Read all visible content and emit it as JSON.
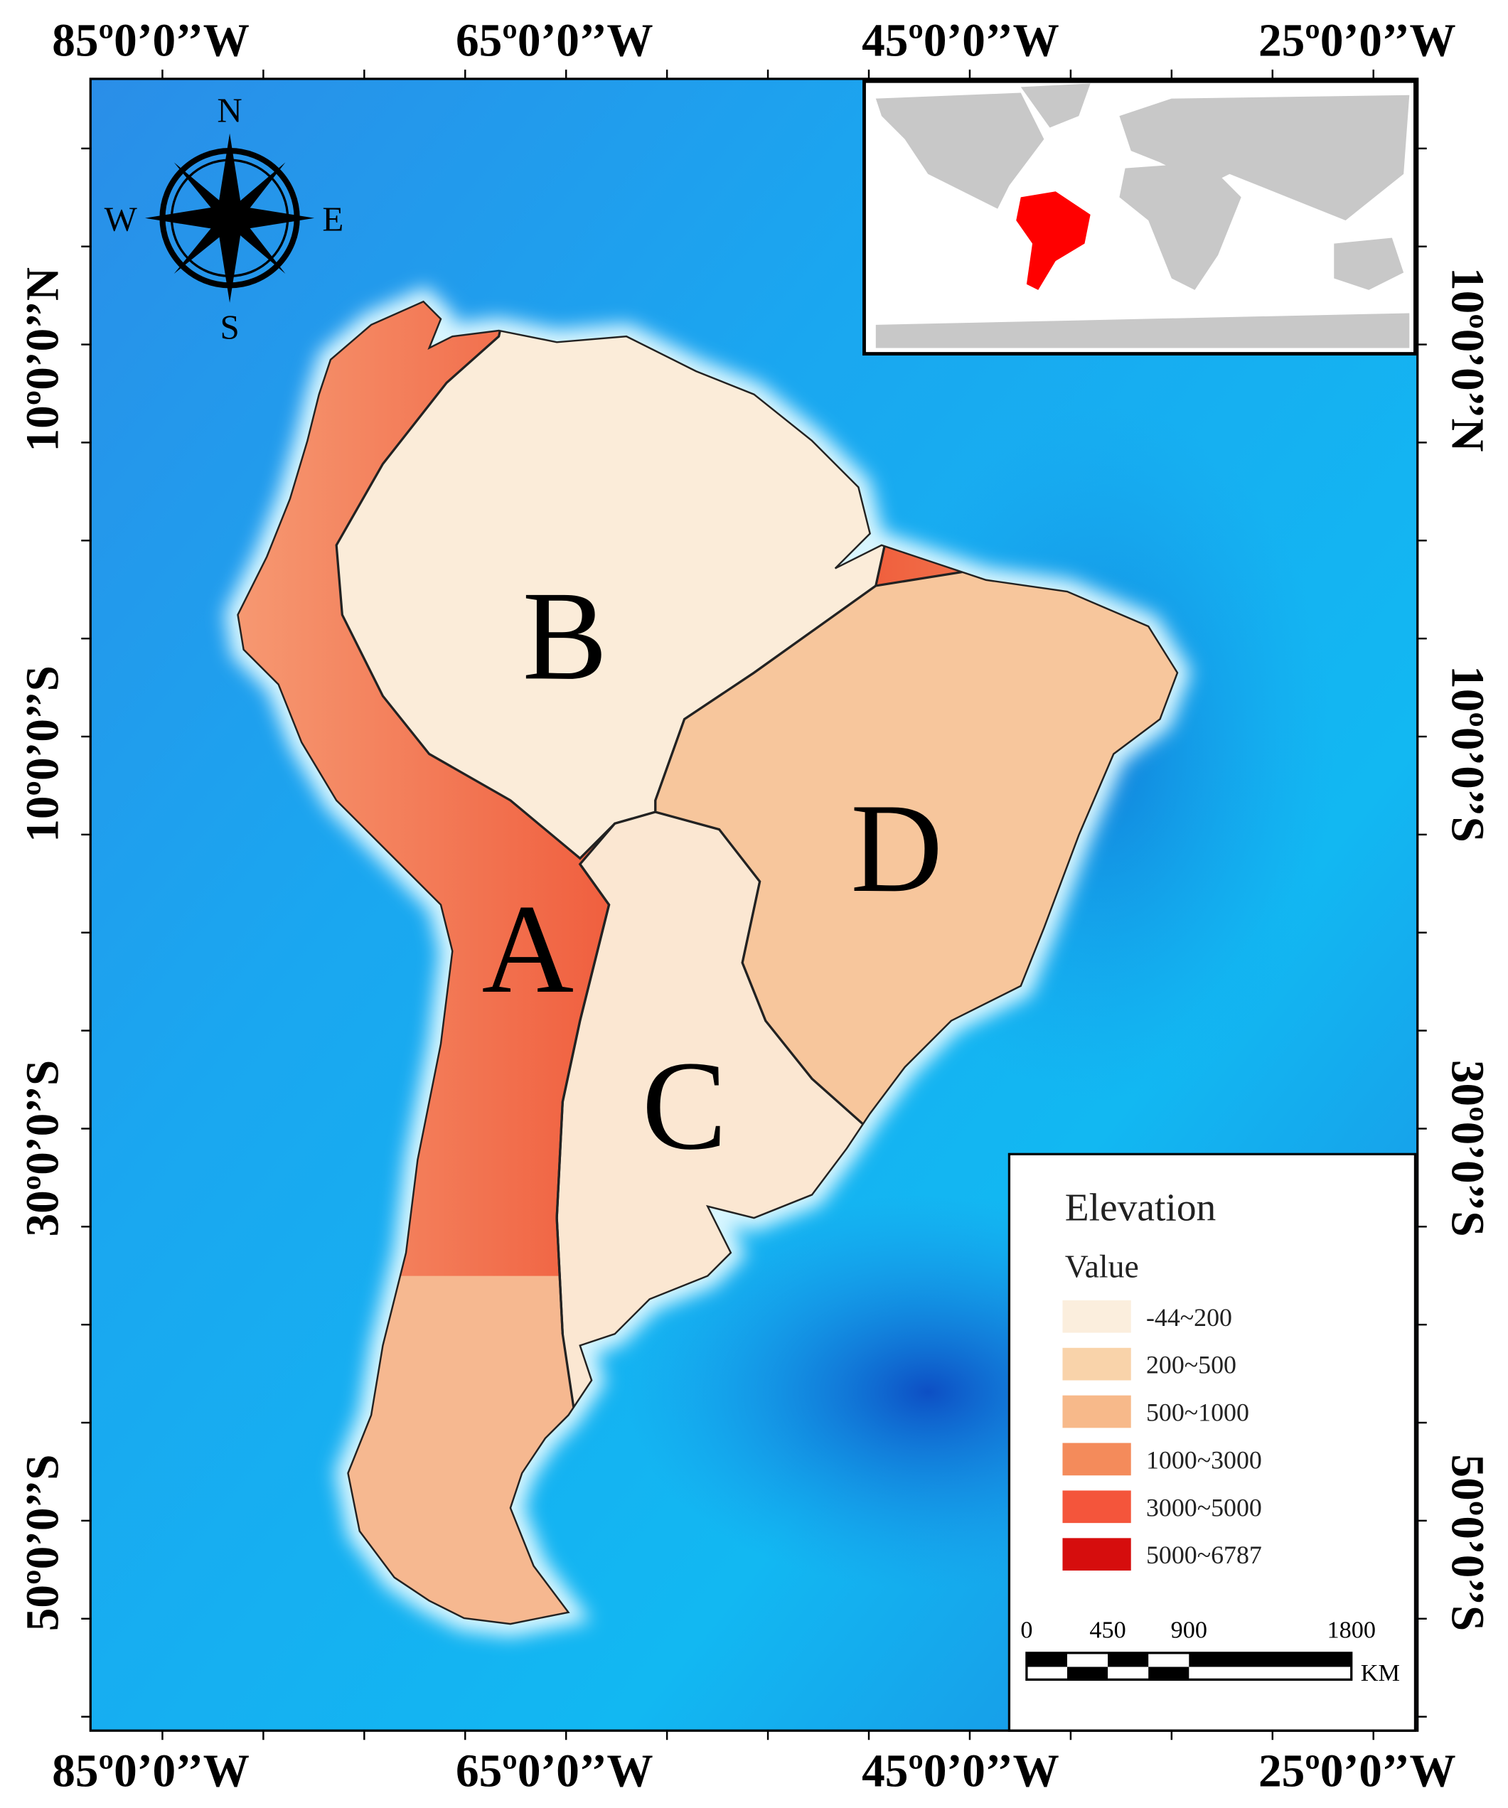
{
  "top_axis": {
    "labels": [
      "85º0’0’’W",
      "65º0’0’’W",
      "45º0’0’’W",
      "25º0’0’’W"
    ]
  },
  "bottom_axis": {
    "labels": [
      "85º0’0’’W",
      "65º0’0’’W",
      "45º0’0’’W",
      "25º0’0’’W"
    ]
  },
  "left_axis": {
    "labels": [
      "10º0’0’’N",
      "10º0’0’’S",
      "30º0’0’’S",
      "50º0’0’’S"
    ]
  },
  "right_axis": {
    "labels": [
      "10º0’0’’N",
      "10º0’0’’S",
      "30º0’0’’S",
      "50º0’0’’S"
    ]
  },
  "compass": {
    "north": "N",
    "south": "S",
    "east": "E",
    "west": "W"
  },
  "regions": {
    "labels": [
      "A",
      "B",
      "C",
      "D"
    ]
  },
  "legend": {
    "title": "Elevation",
    "subtitle": "Value",
    "items": [
      {
        "label": "-44~200",
        "color": "#fbeedd"
      },
      {
        "label": "200~500",
        "color": "#f9d3aa"
      },
      {
        "label": "500~1000",
        "color": "#f7b98a"
      },
      {
        "label": "1000~3000",
        "color": "#f48b5b"
      },
      {
        "label": "3000~5000",
        "color": "#f4553b"
      },
      {
        "label": "5000~6787",
        "color": "#d60d0d"
      }
    ]
  },
  "scale_bar": {
    "labels": [
      "0",
      "450",
      "900",
      "1800"
    ],
    "unit": "KM"
  }
}
